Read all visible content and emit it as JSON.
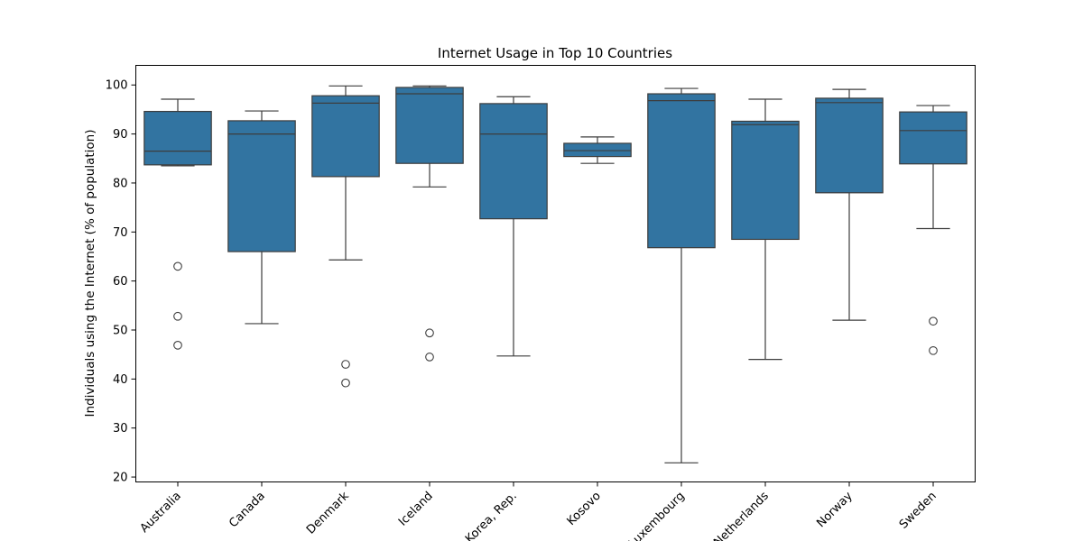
{
  "chart_data": {
    "type": "box",
    "title": "Internet Usage in Top 10 Countries",
    "xlabel": "",
    "ylabel": "Individuals using the Internet (% of population)",
    "ylim": [
      19,
      104
    ],
    "yticks": [
      20,
      30,
      40,
      50,
      60,
      70,
      80,
      90,
      100
    ],
    "grid": false,
    "colors": {
      "box_fill": "#3274a1",
      "line": "#3d3d3d"
    },
    "categories": [
      "Australia",
      "Canada",
      "Denmark",
      "Iceland",
      "Korea, Rep.",
      "Kosovo",
      "Luxembourg",
      "Netherlands",
      "Norway",
      "Sweden"
    ],
    "boxes": [
      {
        "whisker_low": 83.5,
        "q1": 83.7,
        "median": 86.5,
        "q3": 94.6,
        "whisker_high": 97.1,
        "outliers": [
          63.0,
          52.8,
          46.9
        ]
      },
      {
        "whisker_low": 51.3,
        "q1": 66.0,
        "median": 90.0,
        "q3": 92.7,
        "whisker_high": 94.7,
        "outliers": []
      },
      {
        "whisker_low": 64.3,
        "q1": 81.3,
        "median": 96.3,
        "q3": 97.8,
        "whisker_high": 99.8,
        "outliers": [
          43.0,
          39.2
        ]
      },
      {
        "whisker_low": 79.2,
        "q1": 84.0,
        "median": 98.2,
        "q3": 99.5,
        "whisker_high": 99.8,
        "outliers": [
          49.4,
          44.5
        ]
      },
      {
        "whisker_low": 44.7,
        "q1": 72.7,
        "median": 90.0,
        "q3": 96.2,
        "whisker_high": 97.6,
        "outliers": []
      },
      {
        "whisker_low": 84.0,
        "q1": 85.4,
        "median": 86.6,
        "q3": 88.1,
        "whisker_high": 89.4,
        "outliers": []
      },
      {
        "whisker_low": 22.9,
        "q1": 66.8,
        "median": 96.8,
        "q3": 98.2,
        "whisker_high": 99.3,
        "outliers": []
      },
      {
        "whisker_low": 44.0,
        "q1": 68.5,
        "median": 91.9,
        "q3": 92.6,
        "whisker_high": 97.1,
        "outliers": []
      },
      {
        "whisker_low": 52.0,
        "q1": 78.0,
        "median": 96.4,
        "q3": 97.3,
        "whisker_high": 99.1,
        "outliers": []
      },
      {
        "whisker_low": 70.7,
        "q1": 83.9,
        "median": 90.7,
        "q3": 94.5,
        "whisker_high": 95.8,
        "outliers": [
          51.8,
          45.8
        ]
      }
    ]
  }
}
